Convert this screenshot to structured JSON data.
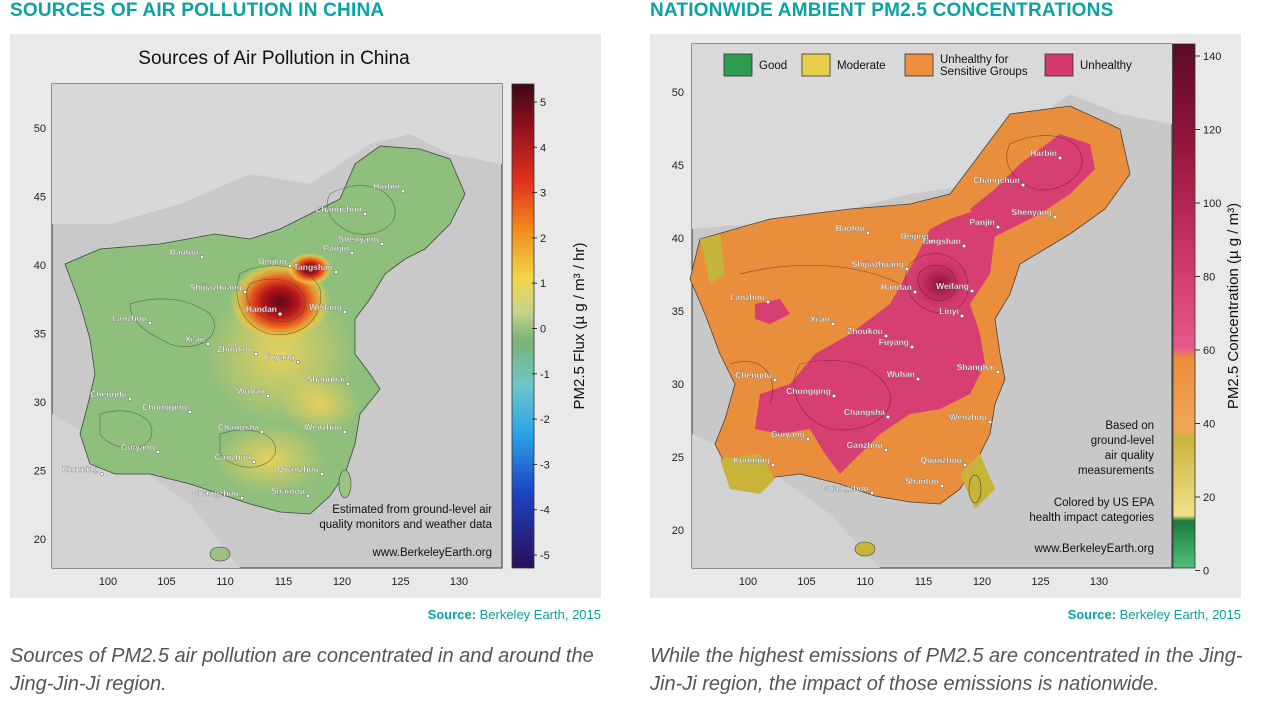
{
  "left": {
    "section_title": "SOURCES OF AIR POLLUTION IN CHINA",
    "map_title": "Sources of Air Pollution in China",
    "colorbar_label": "PM2.5 Flux (µ g / m³ / hr)",
    "colorbar_ticks": [
      "5",
      "4",
      "3",
      "2",
      "1",
      "0",
      "-1",
      "-2",
      "-3",
      "-4",
      "-5"
    ],
    "x_ticks": [
      "100",
      "105",
      "110",
      "115",
      "120",
      "125",
      "130"
    ],
    "y_ticks": [
      "50",
      "45",
      "40",
      "35",
      "30",
      "25",
      "20"
    ],
    "cities": [
      "Harbin",
      "Changchun",
      "Shenyang",
      "Panjin",
      "Baotou",
      "Beijing",
      "Tangshan",
      "Shijiazhuang",
      "Handan",
      "Weifang",
      "Lanzhou",
      "Xi'an",
      "Zhoukou",
      "Fuyang",
      "Shanghai",
      "Chengdu",
      "Chongqing",
      "Wuhan",
      "Changsha",
      "Wenzhou",
      "Guiyang",
      "Ganzhou",
      "Kunming",
      "Quanzhou",
      "Guangzhou",
      "Shantou"
    ],
    "note_line1": "Estimated from ground-level air",
    "note_line2": "quality monitors and weather data",
    "website": "www.BerkeleyEarth.org",
    "source_label": "Source:",
    "source_text": "Berkeley Earth, 2015",
    "caption": "Sources of PM2.5 air pollution are concentrated in and around the Jing-Jin-Ji region.",
    "colors": {
      "low": "#35105e",
      "zero": "#6fae73",
      "high": "#7a0f1a"
    }
  },
  "right": {
    "section_title": "NATIONWIDE AMBIENT PM2.5 CONCENTRATIONS",
    "legend": [
      {
        "label": "Good",
        "color": "#2e9b4e"
      },
      {
        "label": "Moderate",
        "color": "#e8cf4a"
      },
      {
        "label": "Unhealthy for\nSensitive Groups",
        "color": "#ec8e3b"
      },
      {
        "label": "Unhealthy",
        "color": "#d33a6c"
      }
    ],
    "colorbar_label": "PM2.5 Concentration (µ g / m³)",
    "colorbar_ticks": [
      "140",
      "120",
      "100",
      "80",
      "60",
      "40",
      "20",
      "0"
    ],
    "x_ticks": [
      "100",
      "105",
      "110",
      "115",
      "120",
      "125",
      "130"
    ],
    "y_ticks": [
      "50",
      "45",
      "40",
      "35",
      "30",
      "25",
      "20"
    ],
    "cities": [
      "Harbin",
      "Changchun",
      "Shenyang",
      "Panjin",
      "Baotou",
      "Beijing",
      "Tangshan",
      "Shijiazhuang",
      "Handan",
      "Weifang",
      "Lanzhou",
      "Linyi",
      "Xi'an",
      "Zhoukou",
      "Fuyang",
      "Shanghai",
      "Chengdu",
      "Chongqing",
      "Wuhan",
      "Changsha",
      "Wenzhou",
      "Guiyang",
      "Ganzhou",
      "Kunming",
      "Quanzhou",
      "Guangzhou",
      "Shantou"
    ],
    "note_lines": [
      "Based on",
      "ground-level",
      "air quality",
      "measurements"
    ],
    "colored_line1": "Colored by US EPA",
    "colored_line2": "health impact categories",
    "website": "www.BerkeleyEarth.org",
    "source_label": "Source:",
    "source_text": "Berkeley Earth, 2015",
    "caption": "While the highest emissions of PM2.5 are concentrated in the Jing-Jin-Ji region, the impact of those emissions is nationwide."
  }
}
